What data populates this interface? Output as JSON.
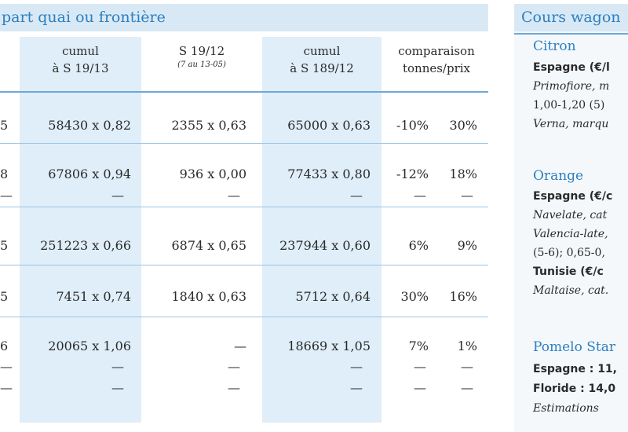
{
  "left_panel": {
    "banner": "part quai ou frontière",
    "headers": [
      {
        "line1": "cumul",
        "line2": "à S 19/13",
        "sub": ""
      },
      {
        "line1": "S 19/12",
        "line2": "",
        "sub": "(7 au 13-05)"
      },
      {
        "line1": "cumul",
        "line2": "à S 189/12",
        "sub": ""
      },
      {
        "line1": "comparaison",
        "line2": "tonnes/prix",
        "sub": ""
      }
    ],
    "rows": [
      {
        "lead": "5",
        "c1": "58430 x 0,82",
        "c2": "2355 x 0,63",
        "c3": "65000 x 0,63",
        "pct_tonnes": "-10%",
        "pct_prix": "30%"
      },
      {
        "lead": "8",
        "c1": "67806 x 0,94",
        "c2": "936 x 0,00",
        "c3": "77433 x 0,80",
        "pct_tonnes": "-12%",
        "pct_prix": "18%"
      },
      {
        "lead": "5",
        "c1": "251223 x 0,66",
        "c2": "6874 x 0,65",
        "c3": "237944 x 0,60",
        "pct_tonnes": "6%",
        "pct_prix": "9%"
      },
      {
        "lead": "5",
        "c1": "7451 x 0,74",
        "c2": "1840 x 0,63",
        "c3": "5712 x 0,64",
        "pct_tonnes": "30%",
        "pct_prix": "16%"
      },
      {
        "lead": "6",
        "c1": "20065 x 1,06",
        "c2": "—",
        "c3": "18669 x 1,05",
        "pct_tonnes": "7%",
        "pct_prix": "1%"
      }
    ],
    "dash": "—"
  },
  "right_panel": {
    "title": "Cours wagon",
    "citron": {
      "heading": "Citron",
      "origin": "Espagne (€/l",
      "line1": "Primofiore, m",
      "line2": "1,00-1,20 (5)",
      "line3": "Verna, marqu"
    },
    "orange": {
      "heading": "Orange",
      "origin": "Espagne (€/c",
      "line1": "Navelate, cat",
      "line2": "Valencia-late,",
      "line3": "(5-6); 0,65-0,",
      "origin2": "Tunisie (€/c",
      "line4": "Maltaise, cat."
    },
    "pomelo": {
      "heading": "Pomelo Star",
      "line1": "Espagne : 11,",
      "line2": "Floride : 14,0",
      "line3": "Estimations"
    }
  }
}
